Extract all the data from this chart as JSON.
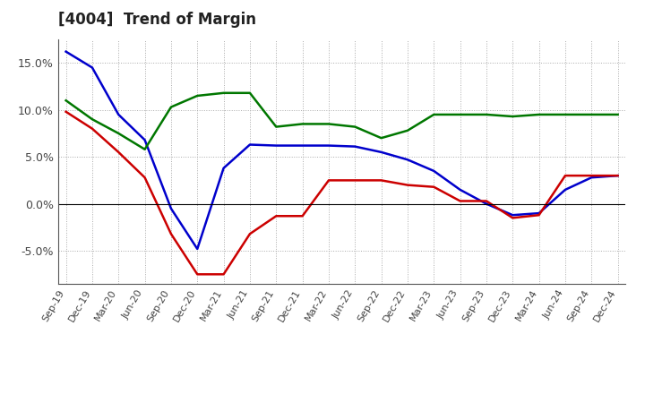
{
  "title": "[4004]  Trend of Margin",
  "x_labels": [
    "Sep-19",
    "Dec-19",
    "Mar-20",
    "Jun-20",
    "Sep-20",
    "Dec-20",
    "Mar-21",
    "Jun-21",
    "Sep-21",
    "Dec-21",
    "Mar-22",
    "Jun-22",
    "Sep-22",
    "Dec-22",
    "Mar-23",
    "Jun-23",
    "Sep-23",
    "Dec-23",
    "Mar-24",
    "Jun-24",
    "Sep-24",
    "Dec-24"
  ],
  "ordinary_income": [
    16.2,
    14.5,
    9.5,
    6.8,
    -0.5,
    -4.8,
    3.8,
    6.3,
    6.2,
    6.2,
    6.2,
    6.1,
    5.5,
    4.7,
    3.5,
    1.5,
    0.0,
    -1.2,
    -1.0,
    1.5,
    2.8,
    3.0
  ],
  "net_income": [
    9.8,
    8.0,
    5.5,
    2.8,
    -3.2,
    -7.5,
    -7.5,
    -3.2,
    -1.3,
    -1.3,
    2.5,
    2.5,
    2.5,
    2.0,
    1.8,
    0.3,
    0.3,
    -1.5,
    -1.2,
    3.0,
    3.0,
    3.0
  ],
  "operating_cashflow": [
    11.0,
    9.0,
    7.5,
    5.8,
    10.3,
    11.5,
    11.8,
    11.8,
    8.2,
    8.5,
    8.5,
    8.2,
    7.0,
    7.8,
    9.5,
    9.5,
    9.5,
    9.3,
    9.5,
    9.5,
    9.5,
    9.5
  ],
  "ordinary_income_color": "#0000CC",
  "net_income_color": "#CC0000",
  "operating_cashflow_color": "#007700",
  "ylim": [
    -8.5,
    17.5
  ],
  "yticks": [
    -5.0,
    0.0,
    5.0,
    10.0,
    15.0
  ],
  "background_color": "#FFFFFF",
  "grid_color": "#AAAAAA"
}
